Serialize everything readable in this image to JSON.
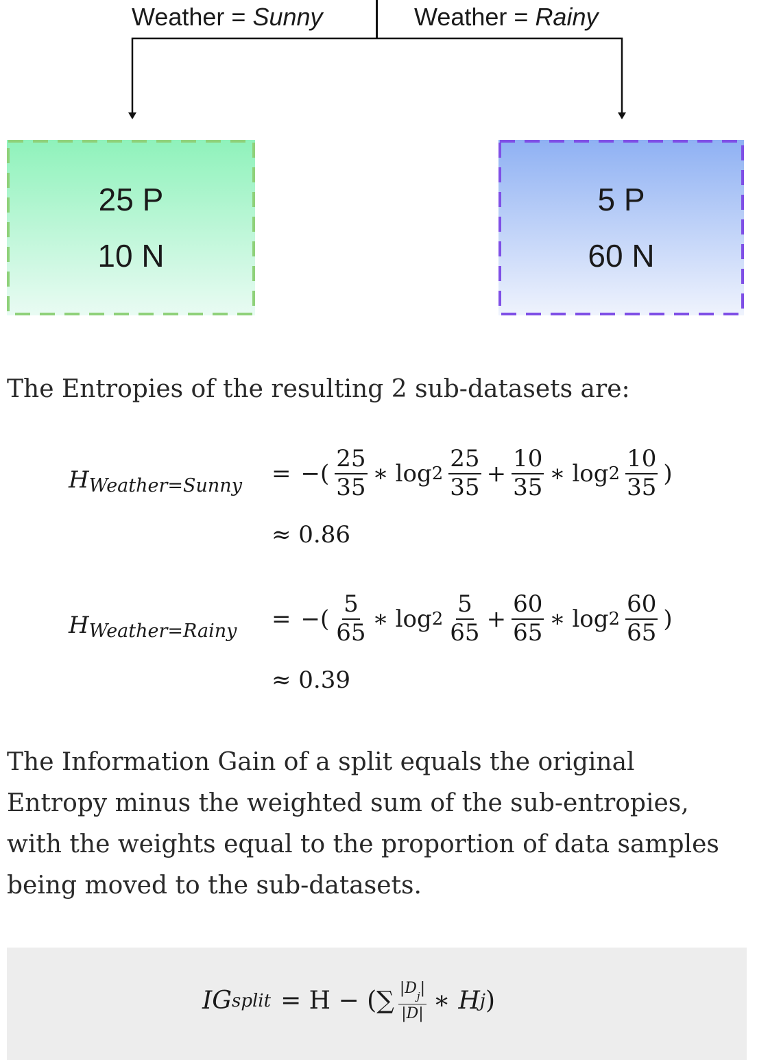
{
  "diagram": {
    "left_split": {
      "prefix": "Weather = ",
      "value": "Sunny"
    },
    "right_split": {
      "prefix": "Weather = ",
      "value": "Rainy"
    },
    "left_node": {
      "line1": "25 P",
      "line2": "10 N"
    },
    "right_node": {
      "line1": "5 P",
      "line2": "60 N"
    },
    "colors": {
      "left_fill_top": "#8ff2bb",
      "left_border": "#8fd17a",
      "right_fill_top": "#8fb1f3",
      "right_border": "#7f4fe6"
    }
  },
  "text": {
    "entropies_intro": "The Entropies of the resulting 2 sub-datasets are:",
    "info_gain_para": "The Information Gain of a split equals the original Entropy minus the weighted sum of the sub-entropies, with the weights equal to the proportion of data samples being moved to the sub-datasets."
  },
  "equations": {
    "sunny": {
      "lhs_symbol": "H",
      "lhs_subscript": "Weather=Sunny",
      "equals": "=",
      "open": "−(",
      "close": ")",
      "times": "∗",
      "plus": "+",
      "log": "log",
      "log_base": "2",
      "f1_num": "25",
      "f1_den": "35",
      "f2_num": "25",
      "f2_den": "35",
      "f3_num": "10",
      "f3_den": "35",
      "f4_num": "10",
      "f4_den": "35",
      "approx": "≈ 0.86"
    },
    "rainy": {
      "lhs_symbol": "H",
      "lhs_subscript": "Weather=Rainy",
      "equals": "=",
      "open": "−(",
      "close": ")",
      "times": "∗",
      "plus": "+",
      "log": "log",
      "log_base": "2",
      "f1_num": "5",
      "f1_den": "65",
      "f2_num": "5",
      "f2_den": "65",
      "f3_num": "60",
      "f3_den": "65",
      "f4_num": "60",
      "f4_den": "65",
      "approx": "≈ 0.39"
    },
    "information_gain": {
      "lhs": "IG",
      "lhs_subscript": "split",
      "rhs_start": "= H − (∑",
      "frac_num": "|D",
      "frac_num_sub": "j",
      "frac_num_end": "|",
      "frac_den": "|D|",
      "rhs_end_mult": "∗",
      "rhs_end_h": "H",
      "rhs_end_sub": "j",
      "rhs_close": ")"
    }
  }
}
